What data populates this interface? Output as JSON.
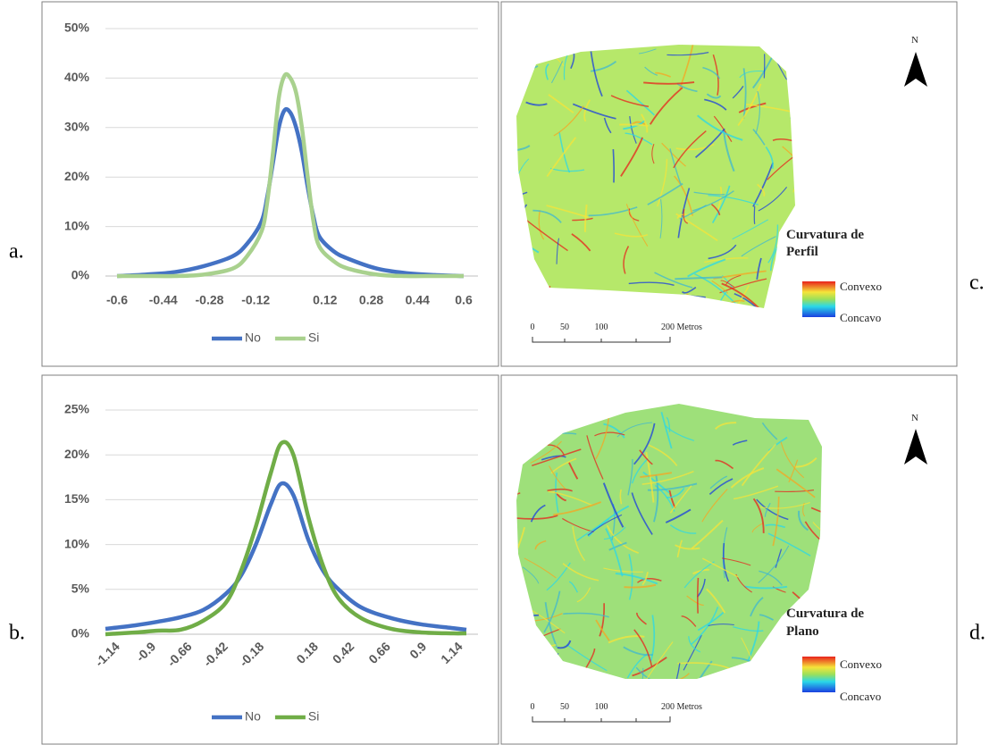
{
  "panel_labels": [
    "a.",
    "b.",
    "c.",
    "d."
  ],
  "chart_data": [
    {
      "type": "line",
      "x": [
        -0.6,
        -0.5,
        -0.4,
        -0.3,
        -0.2,
        -0.15,
        -0.1,
        -0.08,
        -0.06,
        -0.04,
        -0.02,
        0,
        0.02,
        0.04,
        0.06,
        0.08,
        0.1,
        0.15,
        0.2,
        0.3,
        0.4,
        0.5,
        0.6
      ],
      "series": [
        {
          "name": "No",
          "color": "#4472c4",
          "values": [
            0,
            0.3,
            0.8,
            2,
            4,
            6.5,
            11,
            16,
            23,
            30,
            33.5,
            33,
            30,
            25,
            18,
            12,
            8,
            5,
            3.5,
            1.5,
            0.6,
            0.2,
            0
          ]
        },
        {
          "name": "Si",
          "color": "#a9d18e",
          "values": [
            0,
            0,
            0,
            0.3,
            1.5,
            4,
            9,
            15,
            25,
            36,
            40.5,
            40,
            37,
            30,
            20,
            11,
            6,
            3,
            1.5,
            0.3,
            0,
            0,
            0
          ]
        }
      ],
      "xlim": [
        -0.6,
        0.6
      ],
      "xticks": [
        -0.6,
        -0.44,
        -0.28,
        -0.12,
        0.12,
        0.28,
        0.44,
        0.6
      ],
      "ylim": [
        0,
        50
      ],
      "yticks": [
        {
          "value": 0,
          "label": "0%"
        },
        {
          "value": 10,
          "label": "10%"
        },
        {
          "value": 20,
          "label": "20%"
        },
        {
          "value": 30,
          "label": "30%"
        },
        {
          "value": 40,
          "label": "40%"
        },
        {
          "value": 50,
          "label": "50%"
        }
      ],
      "grid": true,
      "legend": "bottom"
    },
    {
      "type": "line",
      "x": [
        -1.2,
        -1.0,
        -0.85,
        -0.7,
        -0.55,
        -0.4,
        -0.3,
        -0.2,
        -0.1,
        -0.03,
        0.05,
        0.15,
        0.25,
        0.35,
        0.5,
        0.7,
        0.9,
        1.1,
        1.2
      ],
      "series": [
        {
          "name": "No",
          "color": "#4472c4",
          "values": [
            0.6,
            1.0,
            1.4,
            1.9,
            2.7,
            4.5,
            6.5,
            10,
            14.5,
            16.8,
            15.5,
            10.5,
            7,
            5,
            3,
            1.8,
            1.1,
            0.7,
            0.5
          ]
        },
        {
          "name": "Si",
          "color": "#70ad47",
          "values": [
            0,
            0.2,
            0.4,
            0.5,
            1.5,
            3.5,
            7,
            12,
            18,
            21.3,
            20,
            13,
            7.5,
            4,
            1.8,
            0.6,
            0.2,
            0.1,
            0.1
          ]
        }
      ],
      "xlim": [
        -1.2,
        1.2
      ],
      "xticks": [
        -1.14,
        -0.9,
        -0.66,
        -0.42,
        -0.18,
        0.18,
        0.42,
        0.66,
        0.9,
        1.14
      ],
      "ylim": [
        0,
        25
      ],
      "yticks": [
        {
          "value": 0,
          "label": "0%"
        },
        {
          "value": 5,
          "label": "5%"
        },
        {
          "value": 10,
          "label": "10%"
        },
        {
          "value": 15,
          "label": "15%"
        },
        {
          "value": 20,
          "label": "20%"
        },
        {
          "value": 25,
          "label": "25%"
        }
      ],
      "grid": true,
      "legend": "bottom"
    }
  ],
  "maps": [
    {
      "legend_title": [
        "Curvatura de",
        "Perfil"
      ],
      "legend_labels": [
        "Convexo",
        "Concavo"
      ],
      "north": "N",
      "scale_labels": [
        "0",
        "50",
        "100",
        "200 Metros"
      ]
    },
    {
      "legend_title": [
        "Curvatura de",
        "Plano"
      ],
      "legend_labels": [
        "Convexo",
        "Concavo"
      ],
      "north": "N",
      "scale_labels": [
        "0",
        "50",
        "100",
        "200 Metros"
      ]
    }
  ]
}
